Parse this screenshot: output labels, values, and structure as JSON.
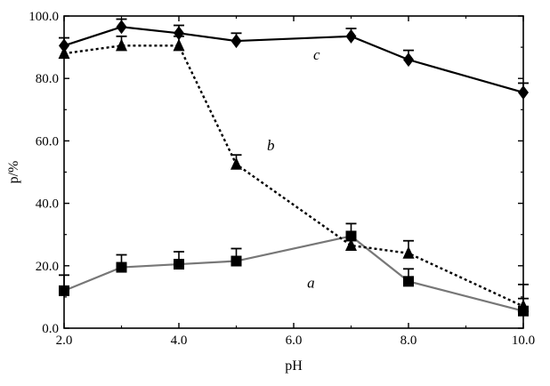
{
  "chart_data": {
    "type": "line",
    "xlabel": "pH",
    "ylabel": "p/%",
    "xlim": [
      2.0,
      10.0
    ],
    "ylim": [
      0.0,
      100.0
    ],
    "x_ticks": [
      "2.0",
      "4.0",
      "6.0",
      "8.0",
      "10.0"
    ],
    "x_tick_values": [
      2,
      4,
      6,
      8,
      10
    ],
    "y_ticks": [
      "0.0",
      "20.0",
      "40.0",
      "60.0",
      "80.0",
      "100.0"
    ],
    "y_tick_values": [
      0,
      20,
      40,
      60,
      80,
      100
    ],
    "grid": false,
    "legend": "none",
    "series": [
      {
        "name": "a",
        "marker": "square",
        "line_style": "thin-gray",
        "color": "#000000",
        "x": [
          2,
          3,
          4,
          5,
          7,
          8,
          10
        ],
        "y": [
          12,
          19.5,
          20.5,
          21.5,
          29.5,
          15,
          5.5
        ],
        "error": [
          5,
          4,
          4,
          4,
          4,
          4,
          4
        ]
      },
      {
        "name": "b",
        "marker": "triangle",
        "line_style": "dotted",
        "color": "#000000",
        "x": [
          2,
          3,
          4,
          5,
          7,
          8,
          10
        ],
        "y": [
          88,
          90.5,
          90.5,
          52.5,
          26.5,
          24,
          7
        ],
        "error": [
          0,
          3,
          3,
          3,
          3,
          4,
          7
        ]
      },
      {
        "name": "c",
        "marker": "diamond",
        "line_style": "solid",
        "color": "#000000",
        "x": [
          2,
          3,
          4,
          5,
          7,
          8,
          10
        ],
        "y": [
          90.5,
          96.5,
          94.5,
          92,
          93.5,
          86,
          75.5
        ],
        "error": [
          2.5,
          2.5,
          2.5,
          2.5,
          2.5,
          3,
          3
        ]
      }
    ]
  }
}
